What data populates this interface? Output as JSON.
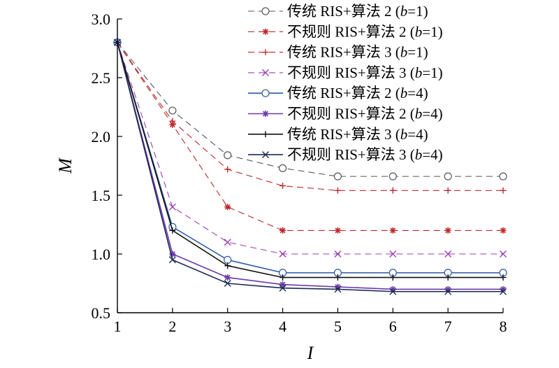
{
  "chart_data": {
    "type": "line",
    "xlabel": "I",
    "ylabel": "M",
    "xlim": [
      1,
      8
    ],
    "ylim": [
      0.5,
      3.0
    ],
    "x": [
      1,
      2,
      3,
      4,
      5,
      6,
      7,
      8
    ],
    "xticks": [
      "1",
      "2",
      "3",
      "4",
      "5",
      "6",
      "7",
      "8"
    ],
    "yticks": [
      "0.5",
      "1.0",
      "1.5",
      "2.0",
      "2.5",
      "3.0"
    ],
    "grid": false,
    "legend_position": "top-right",
    "series": [
      {
        "label_pre": "传统 RIS+算法 2 (",
        "label_var": "b",
        "label_post": "=1)",
        "color": "#555555",
        "dash": true,
        "marker": "circle",
        "values": [
          2.8,
          2.22,
          1.84,
          1.73,
          1.66,
          1.66,
          1.66,
          1.66
        ]
      },
      {
        "label_pre": "不规则 RIS+算法 2 (",
        "label_var": "b",
        "label_post": "=1)",
        "color": "#c0282d",
        "dash": true,
        "marker": "asterisk",
        "values": [
          2.8,
          2.1,
          1.4,
          1.2,
          1.2,
          1.2,
          1.2,
          1.2
        ]
      },
      {
        "label_pre": "传统 RIS+算法 3 (",
        "label_var": "b",
        "label_post": "=1)",
        "color": "#c0282d",
        "dash": true,
        "marker": "plus",
        "values": [
          2.8,
          2.13,
          1.72,
          1.58,
          1.54,
          1.54,
          1.54,
          1.54
        ]
      },
      {
        "label_pre": "不规则 RIS+算法 3 (",
        "label_var": "b",
        "label_post": "=1)",
        "color": "#9b3fb0",
        "dash": true,
        "marker": "cross",
        "values": [
          2.8,
          1.4,
          1.1,
          1.0,
          1.0,
          1.0,
          1.0,
          1.0
        ]
      },
      {
        "label_pre": "传统 RIS+算法 2 (",
        "label_var": "b",
        "label_post": "=4)",
        "color": "#2b5aa8",
        "dash": false,
        "marker": "circle",
        "values": [
          2.8,
          1.23,
          0.95,
          0.84,
          0.84,
          0.84,
          0.84,
          0.84
        ]
      },
      {
        "label_pre": "不规则 RIS+算法 2 (",
        "label_var": "b",
        "label_post": "=4)",
        "color": "#6a3aa8",
        "dash": false,
        "marker": "asterisk",
        "values": [
          2.8,
          1.0,
          0.8,
          0.74,
          0.72,
          0.7,
          0.7,
          0.7
        ]
      },
      {
        "label_pre": "传统 RIS+算法 3 (",
        "label_var": "b",
        "label_post": "=4)",
        "color": "#111111",
        "dash": false,
        "marker": "plus",
        "values": [
          2.8,
          1.2,
          0.9,
          0.8,
          0.8,
          0.8,
          0.8,
          0.8
        ]
      },
      {
        "label_pre": "不规则 RIS+算法 3 (",
        "label_var": "b",
        "label_post": "=4)",
        "color": "#1c2a55",
        "dash": false,
        "marker": "cross",
        "values": [
          2.8,
          0.95,
          0.75,
          0.71,
          0.7,
          0.68,
          0.68,
          0.68
        ]
      }
    ]
  }
}
